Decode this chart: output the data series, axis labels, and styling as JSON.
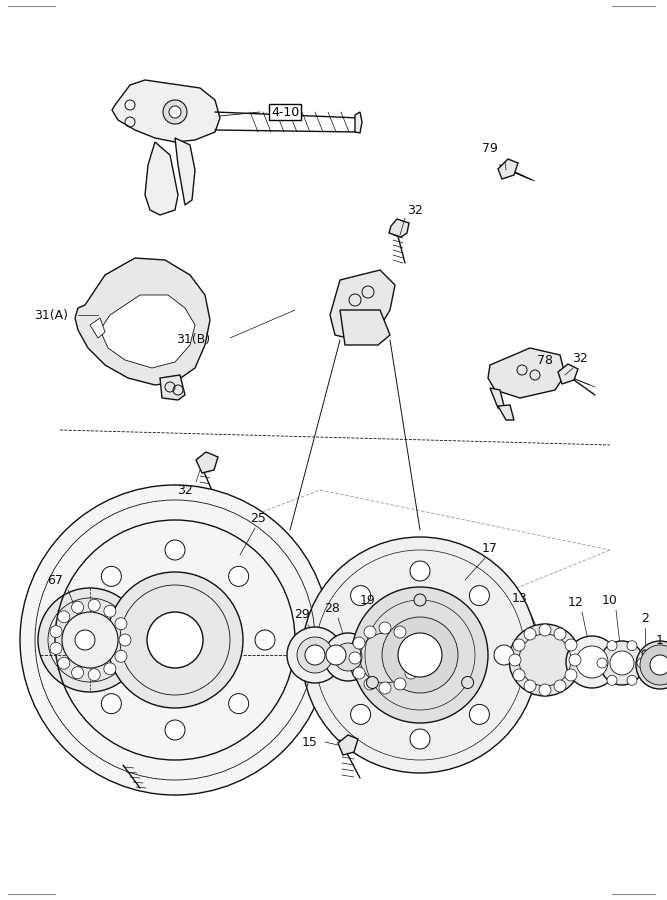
{
  "bg_color": "#ffffff",
  "line_color": "#111111",
  "lw_main": 1.0,
  "lw_thin": 0.6,
  "fig_width": 6.67,
  "fig_height": 9.0,
  "dpi": 100,
  "xmax": 667,
  "ymax": 900
}
